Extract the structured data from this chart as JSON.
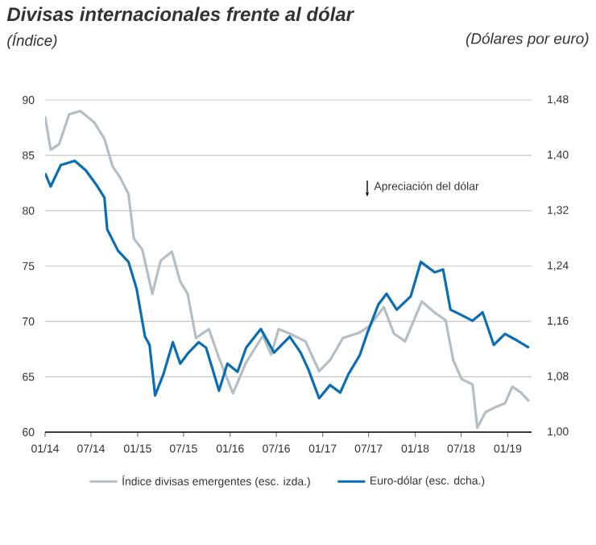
{
  "chart_data": {
    "type": "line",
    "title": "Divisas internacionales frente al dólar",
    "ylabel": "(Índice)",
    "y2label": "(Dólares por euro)",
    "xlim": [
      "2014-01-01",
      "2019-04-05"
    ],
    "xticks": [
      {
        "value": "2014-01",
        "label": "01/14"
      },
      {
        "value": "2014-07",
        "label": "07/14"
      },
      {
        "value": "2015-01",
        "label": "01/15"
      },
      {
        "value": "2015-07",
        "label": "07/15"
      },
      {
        "value": "2016-01",
        "label": "01/16"
      },
      {
        "value": "2016-07",
        "label": "07/16"
      },
      {
        "value": "2017-01",
        "label": "01/17"
      },
      {
        "value": "2017-07",
        "label": "07/17"
      },
      {
        "value": "2018-01",
        "label": "01/18"
      },
      {
        "value": "2018-07",
        "label": "07/18"
      },
      {
        "value": "2019-01",
        "label": "01/19"
      }
    ],
    "ylim": [
      60,
      90
    ],
    "yticks": [
      60,
      65,
      70,
      75,
      80,
      85,
      90
    ],
    "y2lim": [
      1.0,
      1.48
    ],
    "y2ticks": [
      {
        "value": 1.0,
        "label": "1,00"
      },
      {
        "value": 1.08,
        "label": "1,08"
      },
      {
        "value": 1.16,
        "label": "1,16"
      },
      {
        "value": 1.24,
        "label": "1,24"
      },
      {
        "value": 1.32,
        "label": "1,32"
      },
      {
        "value": 1.4,
        "label": "1,40"
      },
      {
        "value": 1.48,
        "label": "1,48"
      }
    ],
    "grid": "y",
    "legend": "bottom",
    "annotations": [
      "Apreciación del dólar"
    ],
    "series": [
      {
        "name": "Índice divisas emergentes (esc. izda.)",
        "color": "#b4bec4",
        "x": [
          "2014-01-01",
          "2014-01-23",
          "2014-02-25",
          "2014-04-06",
          "2014-05-20",
          "2014-07-13",
          "2014-08-23",
          "2014-09-24",
          "2014-10-24",
          "2014-11-26",
          "2014-12-17",
          "2015-01-19",
          "2015-02-28",
          "2015-04-02",
          "2015-05-16",
          "2015-06-18",
          "2015-07-17",
          "2015-08-19",
          "2015-10-09",
          "2015-11-18",
          "2016-01-12",
          "2016-03-04",
          "2016-05-09",
          "2016-06-11",
          "2016-07-10",
          "2016-08-23",
          "2016-10-24",
          "2016-12-17",
          "2017-01-30",
          "2017-03-22",
          "2017-05-27",
          "2017-07-06",
          "2017-08-30",
          "2017-10-09",
          "2017-11-22",
          "2018-01-27",
          "2018-03-19",
          "2018-05-01",
          "2018-05-31",
          "2018-07-03",
          "2018-08-15",
          "2018-09-03",
          "2018-10-05",
          "2018-11-18",
          "2018-12-21",
          "2019-01-19",
          "2019-02-21",
          "2019-03-26"
        ],
        "values": [
          88.5,
          85.5,
          86,
          88.7,
          89,
          88,
          86.5,
          84,
          83,
          81.5,
          77.5,
          76.5,
          72.5,
          75.5,
          76.3,
          73.6,
          72.5,
          68.5,
          69.3,
          66.7,
          63.5,
          66.3,
          68.7,
          67,
          69.3,
          68.9,
          68.2,
          65.5,
          66.5,
          68.5,
          69,
          69.6,
          71.3,
          68.9,
          68.2,
          71.8,
          70.8,
          70.1,
          66.5,
          64.8,
          64.3,
          60.4,
          61.8,
          62.3,
          62.6,
          64.1,
          63.6,
          62.8
        ]
      },
      {
        "name": "Euro-dólar (esc. dcha.)",
        "color": "#0a6eb4",
        "axis": "y2",
        "x": [
          "2014-01-01",
          "2014-01-23",
          "2014-03-04",
          "2014-04-28",
          "2014-06-11",
          "2014-07-21",
          "2014-08-23",
          "2014-09-03",
          "2014-10-16",
          "2014-11-26",
          "2014-12-28",
          "2015-01-30",
          "2015-02-17",
          "2015-03-11",
          "2015-04-13",
          "2015-05-20",
          "2015-06-18",
          "2015-07-21",
          "2015-08-30",
          "2015-09-28",
          "2015-11-18",
          "2015-12-21",
          "2016-01-30",
          "2016-03-04",
          "2016-05-01",
          "2016-06-22",
          "2016-08-23",
          "2016-10-05",
          "2016-11-04",
          "2016-12-17",
          "2017-01-30",
          "2017-03-11",
          "2017-04-13",
          "2017-05-27",
          "2017-06-25",
          "2017-08-08",
          "2017-09-10",
          "2017-10-20",
          "2017-12-14",
          "2018-01-23",
          "2018-03-19",
          "2018-04-21",
          "2018-05-20",
          "2018-07-03",
          "2018-08-15",
          "2018-09-24",
          "2018-11-07",
          "2018-12-21",
          "2019-01-30",
          "2019-03-26"
        ],
        "values": [
          1.374,
          1.355,
          1.386,
          1.392,
          1.378,
          1.358,
          1.339,
          1.293,
          1.262,
          1.246,
          1.207,
          1.138,
          1.126,
          1.053,
          1.084,
          1.13,
          1.099,
          1.115,
          1.13,
          1.122,
          1.06,
          1.099,
          1.087,
          1.122,
          1.149,
          1.115,
          1.138,
          1.115,
          1.091,
          1.049,
          1.068,
          1.057,
          1.084,
          1.111,
          1.142,
          1.184,
          1.2,
          1.177,
          1.196,
          1.246,
          1.231,
          1.235,
          1.177,
          1.169,
          1.161,
          1.173,
          1.126,
          1.142,
          1.134,
          1.122
        ]
      }
    ]
  }
}
